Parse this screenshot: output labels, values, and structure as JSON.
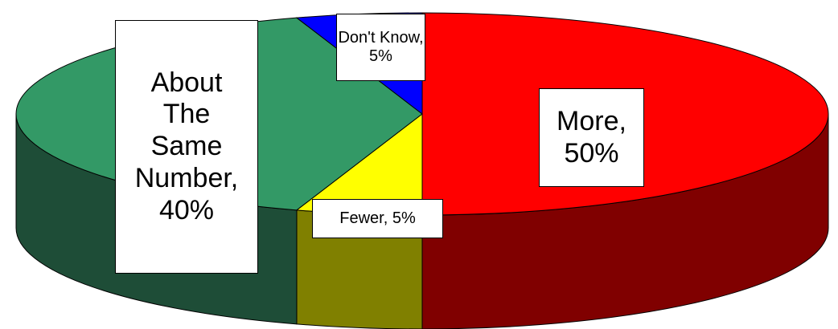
{
  "chart_data": {
    "type": "pie3d",
    "values": [
      50,
      5,
      40,
      5
    ],
    "value_labels": [
      "More, 50%",
      "Fewer, 5%",
      "About The Same Number, 40%",
      "Don't Know, 5%"
    ],
    "colors": [
      "#ff0000",
      "#ffff00",
      "#339966",
      "#0000ff"
    ],
    "side_colors": [
      "#800000",
      "#808000",
      "#1e4d37",
      "#000080"
    ]
  }
}
